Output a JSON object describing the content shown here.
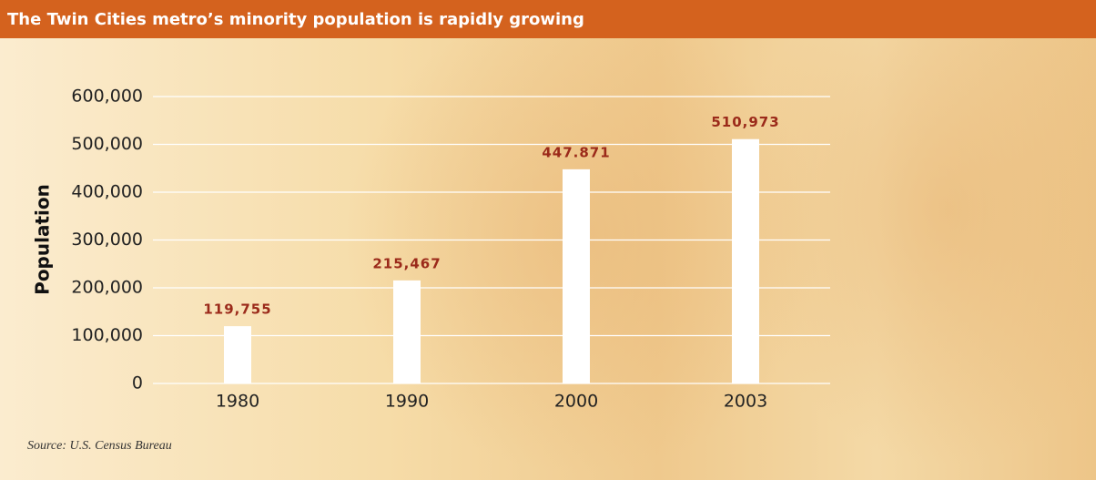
{
  "chart_data": {
    "type": "bar",
    "title": "The Twin Cities metro’s minority population is rapidly growing",
    "y_label": "Population",
    "source": "Source: U.S. Census Bureau",
    "categories": [
      "1980",
      "1990",
      "2000",
      "2003"
    ],
    "values": [
      119755,
      215467,
      447871,
      510973
    ],
    "value_labels": [
      "119,755",
      "215,467",
      "447.871",
      "510,973"
    ],
    "color": "#ffffff",
    "ylim": [
      0,
      600000
    ],
    "yticks": [
      0,
      {
        "value": 100000,
        "label": "100,000"
      },
      {
        "value": 200000,
        "label": "200,000"
      },
      {
        "value": 300000,
        "label": "300,000"
      },
      {
        "value": 400000,
        "label": "400,000"
      },
      {
        "value": 500000,
        "label": "500,000"
      },
      {
        "value": 600000,
        "label": "600,000"
      }
    ],
    "grid": true
  }
}
